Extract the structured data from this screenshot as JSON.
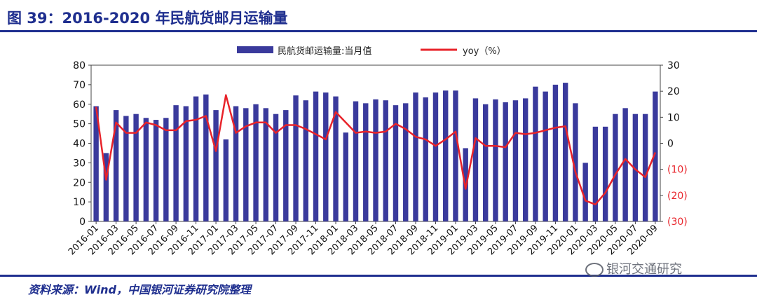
{
  "figure_title": "图 39：2016-2020 年民航货邮月运输量",
  "source_note": "资料来源：Wind，中国银河证券研究院整理",
  "watermark": "银河交通研究",
  "colors": {
    "bar": "#3a3a9c",
    "line": "#e8232a",
    "accent": "#1f2f8f"
  },
  "chart_data": {
    "type": "bar",
    "legend": [
      {
        "name": "民航货邮运输量:当月值",
        "kind": "bar"
      },
      {
        "name": "yoy（%）",
        "kind": "line"
      }
    ],
    "legend_position": "top-center",
    "grid": false,
    "categories": [
      "2016-01",
      "2016-02",
      "2016-03",
      "2016-04",
      "2016-05",
      "2016-06",
      "2016-07",
      "2016-08",
      "2016-09",
      "2016-10",
      "2016-11",
      "2016-12",
      "2017-01",
      "2017-02",
      "2017-03",
      "2017-04",
      "2017-05",
      "2017-06",
      "2017-07",
      "2017-08",
      "2017-09",
      "2017-10",
      "2017-11",
      "2017-12",
      "2018-01",
      "2018-02",
      "2018-03",
      "2018-04",
      "2018-05",
      "2018-06",
      "2018-07",
      "2018-08",
      "2018-09",
      "2018-10",
      "2018-11",
      "2018-12",
      "2019-01",
      "2019-02",
      "2019-03",
      "2019-04",
      "2019-05",
      "2019-06",
      "2019-07",
      "2019-08",
      "2019-09",
      "2019-10",
      "2019-11",
      "2019-12",
      "2020-01",
      "2020-02",
      "2020-03",
      "2020-04",
      "2020-05",
      "2020-06",
      "2020-07",
      "2020-08",
      "2020-09"
    ],
    "x_tick_labels": [
      "2016-01",
      "2016-03",
      "2016-05",
      "2016-07",
      "2016-09",
      "2016-11",
      "2017-01",
      "2017-03",
      "2017-05",
      "2017-07",
      "2017-09",
      "2017-11",
      "2018-01",
      "2018-03",
      "2018-05",
      "2018-07",
      "2018-09",
      "2018-11",
      "2019-01",
      "2019-03",
      "2019-05",
      "2019-07",
      "2019-09",
      "2019-11",
      "2020-01",
      "2020-03",
      "2020-05",
      "2020-07",
      "2020-09"
    ],
    "series": [
      {
        "name": "民航货邮运输量:当月值",
        "type": "bar",
        "axis": "left",
        "values": [
          59,
          35,
          57,
          54,
          55,
          53,
          52,
          53,
          59.5,
          59,
          64,
          65,
          57,
          42,
          59,
          58,
          60,
          58,
          55,
          57,
          64.5,
          62,
          66.5,
          66,
          64,
          45.5,
          61.5,
          60.5,
          62.5,
          62,
          59.5,
          60.5,
          66,
          63.5,
          66,
          67,
          67,
          37.5,
          63,
          60,
          62.5,
          61,
          62,
          63,
          69,
          66.5,
          70,
          71,
          60.5,
          30,
          48.5,
          48.5,
          55,
          58,
          55,
          55,
          66.5
        ]
      },
      {
        "name": "yoy（%）",
        "type": "line",
        "axis": "right",
        "values": [
          14,
          -14,
          8,
          4,
          4,
          8,
          7,
          5,
          5,
          8.5,
          9,
          10.5,
          -3,
          18.5,
          4,
          6.5,
          8,
          8,
          4,
          7,
          7,
          5.5,
          3.5,
          1.5,
          12,
          8,
          4,
          4.5,
          4,
          4.5,
          7.5,
          5.5,
          2.5,
          1.5,
          -1,
          1.5,
          4.5,
          -17.5,
          2,
          -1,
          -1,
          -1.5,
          4,
          3.5,
          4,
          5,
          6,
          6.5,
          -11,
          -22,
          -23.5,
          -19,
          -12,
          -6,
          -10,
          -13,
          -3.5
        ]
      }
    ],
    "y_left": {
      "ylim": [
        0,
        80
      ],
      "ticks": [
        "0",
        "10",
        "20",
        "30",
        "40",
        "50",
        "60",
        "70",
        "80"
      ]
    },
    "y_right": {
      "ylim": [
        -30,
        30
      ],
      "ticks": [
        "30",
        "20",
        "10",
        "0",
        "(10)",
        "(20)",
        "(30)"
      ],
      "negative_tick_color": "#e8232a"
    }
  }
}
